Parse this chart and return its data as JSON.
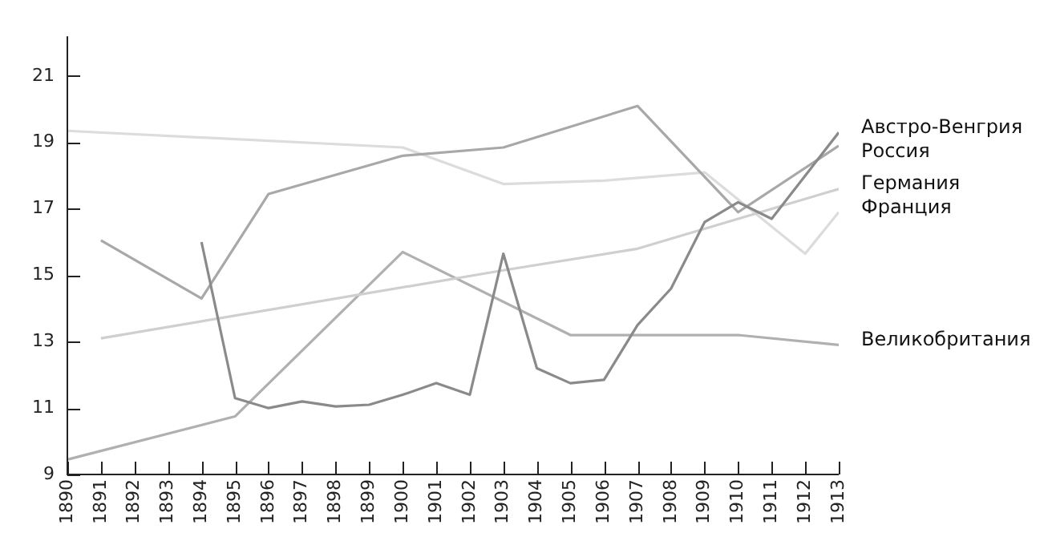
{
  "chart_data": {
    "type": "line",
    "xlim": [
      1890,
      1913
    ],
    "xticks": [
      1890,
      1891,
      1892,
      1893,
      1894,
      1895,
      1896,
      1897,
      1898,
      1899,
      1900,
      1901,
      1902,
      1903,
      1904,
      1905,
      1906,
      1907,
      1908,
      1909,
      1910,
      1911,
      1912,
      1913
    ],
    "ylim": [
      9,
      22.2
    ],
    "yticks": [
      9,
      11,
      13,
      15,
      17,
      19,
      21
    ],
    "grid": false,
    "legend": false,
    "marker": "none",
    "line_style": "solid",
    "series": [
      {
        "name": "Австро-Венгрия",
        "color": "#8a8a8a",
        "x": [
          1894,
          1895,
          1896,
          1897,
          1898,
          1899,
          1900,
          1901,
          1902,
          1903,
          1904,
          1905,
          1906,
          1907,
          1908,
          1909,
          1910,
          1911,
          1912,
          1913
        ],
        "values": [
          16.0,
          11.3,
          11.0,
          11.2,
          11.05,
          11.1,
          11.4,
          11.75,
          11.4,
          15.65,
          12.2,
          11.75,
          11.85,
          13.5,
          14.6,
          16.6,
          17.2,
          16.7,
          18.0,
          19.3
        ]
      },
      {
        "name": "Россия",
        "color": "#a8a8a8",
        "x": [
          1891,
          1894,
          1896,
          1900,
          1903,
          1907,
          1910,
          1913
        ],
        "values": [
          16.05,
          14.3,
          17.45,
          18.6,
          18.85,
          20.1,
          16.9,
          18.9
        ]
      },
      {
        "name": "Германия",
        "color": "#cfcfcf",
        "x": [
          1891,
          1903,
          1907,
          1913
        ],
        "values": [
          13.1,
          15.15,
          15.8,
          17.6
        ]
      },
      {
        "name": "Франция",
        "color": "#dcdcdc",
        "x": [
          1890,
          1900,
          1903,
          1906,
          1909,
          1912,
          1913
        ],
        "values": [
          19.35,
          18.85,
          17.75,
          17.85,
          18.1,
          15.65,
          16.9
        ]
      },
      {
        "name": "Великобритания",
        "color": "#b0b0b0",
        "x": [
          1890,
          1895,
          1900,
          1905,
          1906,
          1910,
          1913
        ],
        "values": [
          9.45,
          10.75,
          15.7,
          13.2,
          13.2,
          13.2,
          12.9
        ]
      }
    ]
  }
}
